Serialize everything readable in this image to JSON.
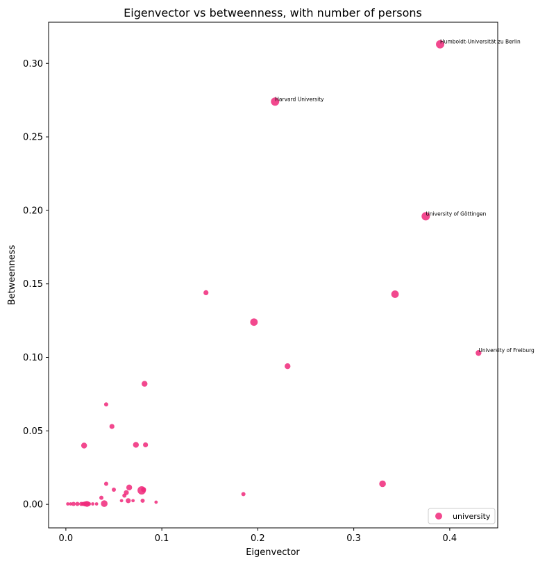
{
  "chart_data": {
    "type": "scatter",
    "title": "Eigenvector vs betweenness, with number of persons",
    "xlabel": "Eigenvector",
    "ylabel": "Betweenness",
    "xlim": [
      -0.018,
      0.45
    ],
    "ylim": [
      -0.016,
      0.328
    ],
    "xticks": [
      0.0,
      0.1,
      0.2,
      0.3,
      0.4
    ],
    "xtick_labels": [
      "0.0",
      "0.1",
      "0.2",
      "0.3",
      "0.4"
    ],
    "yticks": [
      0.0,
      0.05,
      0.1,
      0.15,
      0.2,
      0.25,
      0.3
    ],
    "ytick_labels": [
      "0.00",
      "0.05",
      "0.10",
      "0.15",
      "0.20",
      "0.25",
      "0.30"
    ],
    "grid": false,
    "legend": {
      "placement": "bottom-right",
      "entries": [
        "university"
      ]
    },
    "color": "#f0287a",
    "series": [
      {
        "name": "university",
        "points": [
          {
            "x": 0.39,
            "y": 0.313,
            "n": 8,
            "label": "Humboldt-Universität zu Berlin"
          },
          {
            "x": 0.218,
            "y": 0.274,
            "n": 8,
            "label": "Harvard University"
          },
          {
            "x": 0.375,
            "y": 0.196,
            "n": 8,
            "label": "University of Göttingen"
          },
          {
            "x": 0.43,
            "y": 0.103,
            "n": 5,
            "label": "University of Freiburg"
          },
          {
            "x": 0.146,
            "y": 0.144,
            "n": 4
          },
          {
            "x": 0.343,
            "y": 0.143,
            "n": 7
          },
          {
            "x": 0.196,
            "y": 0.124,
            "n": 7
          },
          {
            "x": 0.231,
            "y": 0.094,
            "n": 5
          },
          {
            "x": 0.082,
            "y": 0.082,
            "n": 5
          },
          {
            "x": 0.042,
            "y": 0.068,
            "n": 3
          },
          {
            "x": 0.048,
            "y": 0.053,
            "n": 4
          },
          {
            "x": 0.019,
            "y": 0.04,
            "n": 5
          },
          {
            "x": 0.073,
            "y": 0.0405,
            "n": 5
          },
          {
            "x": 0.083,
            "y": 0.0405,
            "n": 4
          },
          {
            "x": 0.33,
            "y": 0.014,
            "n": 6
          },
          {
            "x": 0.185,
            "y": 0.007,
            "n": 3
          },
          {
            "x": 0.042,
            "y": 0.014,
            "n": 3
          },
          {
            "x": 0.05,
            "y": 0.01,
            "n": 3
          },
          {
            "x": 0.066,
            "y": 0.0115,
            "n": 5
          },
          {
            "x": 0.079,
            "y": 0.0095,
            "n": 8
          },
          {
            "x": 0.081,
            "y": 0.01,
            "n": 4
          },
          {
            "x": 0.063,
            "y": 0.008,
            "n": 4
          },
          {
            "x": 0.061,
            "y": 0.006,
            "n": 3
          },
          {
            "x": 0.037,
            "y": 0.0045,
            "n": 3
          },
          {
            "x": 0.065,
            "y": 0.0025,
            "n": 4
          },
          {
            "x": 0.07,
            "y": 0.0025,
            "n": 2
          },
          {
            "x": 0.058,
            "y": 0.0025,
            "n": 2
          },
          {
            "x": 0.08,
            "y": 0.0025,
            "n": 3
          },
          {
            "x": 0.094,
            "y": 0.0015,
            "n": 2
          },
          {
            "x": 0.04,
            "y": 0.0005,
            "n": 6
          },
          {
            "x": 0.002,
            "y": 0.0003,
            "n": 2
          },
          {
            "x": 0.005,
            "y": 0.0003,
            "n": 2
          },
          {
            "x": 0.008,
            "y": 0.0003,
            "n": 3
          },
          {
            "x": 0.012,
            "y": 0.0003,
            "n": 3
          },
          {
            "x": 0.016,
            "y": 0.0003,
            "n": 3
          },
          {
            "x": 0.018,
            "y": 0.0003,
            "n": 3
          },
          {
            "x": 0.02,
            "y": 0.0003,
            "n": 4
          },
          {
            "x": 0.022,
            "y": 0.0003,
            "n": 5
          },
          {
            "x": 0.024,
            "y": 0.0003,
            "n": 3
          },
          {
            "x": 0.028,
            "y": 0.0003,
            "n": 2
          },
          {
            "x": 0.032,
            "y": 0.0003,
            "n": 2
          }
        ]
      }
    ]
  }
}
